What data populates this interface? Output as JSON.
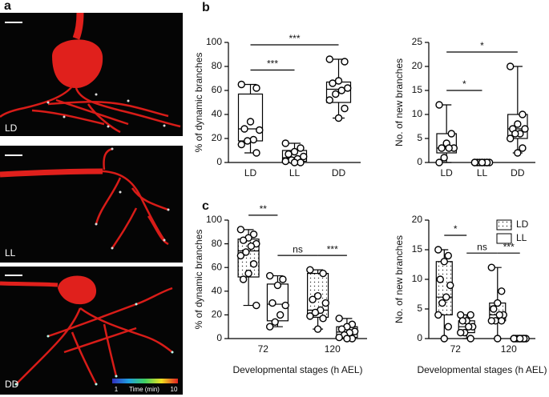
{
  "panel_labels": [
    "a",
    "b",
    "c"
  ],
  "images": [
    {
      "label": "LD"
    },
    {
      "label": "LL"
    },
    {
      "label": "DD"
    }
  ],
  "colorbar": {
    "title": "Time (min)",
    "ticks": [
      1,
      10
    ]
  },
  "chart_data": [
    {
      "type": "box",
      "ylabel": "% of dynamic branches",
      "categories": [
        "LD",
        "LL",
        "DD"
      ],
      "color": "#ffffff",
      "ylim": [
        0,
        100
      ],
      "yticks": [
        0,
        20,
        40,
        60,
        80,
        100
      ],
      "boxes": [
        {
          "min": 8,
          "q1": 18,
          "median": 28,
          "q3": 57,
          "max": 65,
          "points": [
            65,
            62,
            34,
            28,
            27,
            19,
            18,
            15,
            8
          ]
        },
        {
          "min": 0,
          "q1": 1,
          "median": 4,
          "q3": 10,
          "max": 16,
          "points": [
            16,
            12,
            9,
            7,
            5,
            3,
            2,
            1,
            0,
            0
          ]
        },
        {
          "min": 37,
          "q1": 50,
          "median": 61,
          "q3": 67,
          "max": 86,
          "points": [
            86,
            84,
            68,
            66,
            62,
            60,
            57,
            52,
            45,
            37
          ]
        }
      ],
      "annotations": [
        {
          "text": "***",
          "from": "LD",
          "to": "LL"
        },
        {
          "text": "***",
          "from": "LD",
          "to": "DD"
        }
      ]
    },
    {
      "type": "box",
      "ylabel": "No. of new branches",
      "categories": [
        "LD",
        "LL",
        "DD"
      ],
      "color": "#ffffff",
      "ylim": [
        0,
        25
      ],
      "yticks": [
        0,
        5,
        10,
        15,
        20,
        25
      ],
      "boxes": [
        {
          "min": 0,
          "q1": 2,
          "median": 3,
          "q3": 6,
          "max": 12,
          "points": [
            12,
            6,
            4,
            3,
            3,
            3,
            1,
            0
          ]
        },
        {
          "min": 0,
          "q1": 0,
          "median": 0,
          "q3": 0,
          "max": 0,
          "points": [
            0,
            0,
            0,
            0,
            0,
            0,
            0,
            0,
            0,
            0
          ]
        },
        {
          "min": 2,
          "q1": 5,
          "median": 7,
          "q3": 10,
          "max": 20,
          "points": [
            20,
            10,
            8,
            7,
            7,
            6,
            6,
            5,
            3,
            2
          ]
        }
      ],
      "annotations": [
        {
          "text": "*",
          "from": "LD",
          "to": "LL"
        },
        {
          "text": "*",
          "from": "LD",
          "to": "DD"
        }
      ]
    },
    {
      "type": "box",
      "ylabel": "% of dynamic branches",
      "xlabel": "Developmental stages (h AEL)",
      "categories": [
        72,
        120
      ],
      "ylim": [
        0,
        100
      ],
      "yticks": [
        0,
        20,
        40,
        60,
        80,
        100
      ],
      "series": [
        {
          "name": "LD",
          "fill": "dotted",
          "boxes": [
            {
              "min": 28,
              "q1": 52,
              "median": 74,
              "q3": 84,
              "max": 92,
              "points": [
                92,
                88,
                85,
                83,
                80,
                78,
                73,
                70,
                63,
                55,
                50,
                28
              ]
            },
            {
              "min": 8,
              "q1": 18,
              "median": 24,
              "q3": 55,
              "max": 58,
              "points": [
                58,
                55,
                36,
                33,
                30,
                24,
                22,
                19,
                17,
                8
              ]
            }
          ]
        },
        {
          "name": "LL",
          "fill": "#ffffff",
          "boxes": [
            {
              "min": 10,
              "q1": 15,
              "median": 29,
              "q3": 46,
              "max": 53,
              "points": [
                53,
                50,
                45,
                30,
                28,
                20,
                14,
                10
              ]
            },
            {
              "min": 0,
              "q1": 1,
              "median": 5.5,
              "q3": 10,
              "max": 17,
              "points": [
                17,
                12,
                10,
                8,
                6,
                5,
                3,
                1,
                0,
                0
              ]
            }
          ]
        }
      ],
      "annotations": [
        {
          "text": "**",
          "from": {
            "category": 72,
            "series": "LD"
          },
          "to": {
            "category": 72,
            "series": "LL"
          }
        },
        {
          "text": "ns",
          "from": {
            "category": 72,
            "series": "LL"
          },
          "to": {
            "category": 120,
            "series": "LD"
          }
        },
        {
          "text": "***",
          "from": {
            "category": 120,
            "series": "LD"
          },
          "to": {
            "category": 120,
            "series": "LL"
          }
        }
      ]
    },
    {
      "type": "box",
      "ylabel": "No. of new branches",
      "xlabel": "Developmental stages (h AEL)",
      "categories": [
        72,
        120
      ],
      "ylim": [
        0,
        20
      ],
      "yticks": [
        0,
        5,
        10,
        15,
        20
      ],
      "legend": "upper right",
      "series": [
        {
          "name": "LD",
          "fill": "dotted",
          "boxes": [
            {
              "min": 0,
              "q1": 4,
              "median": 7,
              "q3": 13,
              "max": 15,
              "points": [
                15,
                14,
                13,
                10,
                9,
                7,
                6,
                4,
                2,
                0
              ]
            },
            {
              "min": 0,
              "q1": 3,
              "median": 4,
              "q3": 6,
              "max": 12,
              "points": [
                12,
                8,
                6,
                5,
                4,
                4,
                3,
                3,
                3,
                0
              ]
            }
          ]
        },
        {
          "name": "LL",
          "fill": "#ffffff",
          "boxes": [
            {
              "min": 0,
              "q1": 1,
              "median": 2,
              "q3": 3,
              "max": 4,
              "points": [
                4,
                4,
                3,
                3,
                2,
                2,
                1,
                1,
                0
              ]
            },
            {
              "min": 0,
              "q1": 0,
              "median": 0,
              "q3": 0,
              "max": 0,
              "points": [
                0,
                0,
                0,
                0,
                0,
                0,
                0,
                0,
                0,
                0
              ]
            }
          ]
        }
      ],
      "annotations": [
        {
          "text": "*",
          "from": {
            "category": 72,
            "series": "LD"
          },
          "to": {
            "category": 72,
            "series": "LL"
          }
        },
        {
          "text": "ns",
          "from": {
            "category": 72,
            "series": "LL"
          },
          "to": {
            "category": 120,
            "series": "LD"
          }
        },
        {
          "text": "***",
          "from": {
            "category": 120,
            "series": "LD"
          },
          "to": {
            "category": 120,
            "series": "LL"
          }
        }
      ]
    }
  ]
}
